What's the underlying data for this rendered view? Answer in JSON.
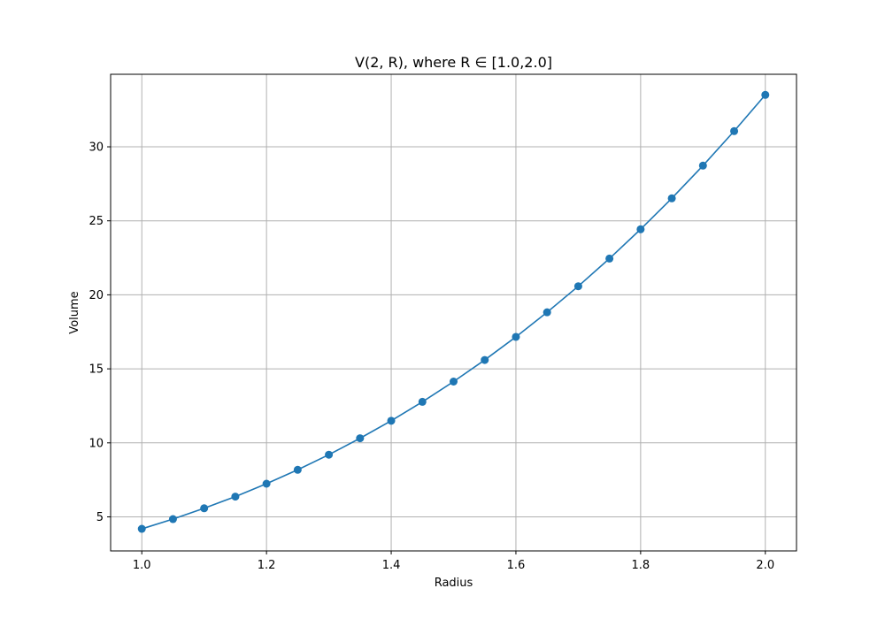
{
  "chart_data": {
    "type": "line",
    "title": "V(2, R), where R ∈ [1.0,2.0]",
    "xlabel": "Radius",
    "ylabel": "Volume",
    "xlim": [
      0.95,
      2.05
    ],
    "ylim": [
      2.7,
      34.9
    ],
    "x_ticks": [
      1.0,
      1.2,
      1.4,
      1.6,
      1.8,
      2.0
    ],
    "x_tick_labels": [
      "1.0",
      "1.2",
      "1.4",
      "1.6",
      "1.8",
      "2.0"
    ],
    "y_ticks": [
      5,
      10,
      15,
      20,
      25,
      30
    ],
    "y_tick_labels": [
      "5",
      "10",
      "15",
      "20",
      "25",
      "30"
    ],
    "grid": true,
    "line_color": "#1f77b4",
    "marker": "circle",
    "series": [
      {
        "x": [
          1.0,
          1.05,
          1.1,
          1.15,
          1.2,
          1.25,
          1.3,
          1.35,
          1.4,
          1.45,
          1.5,
          1.55,
          1.6,
          1.65,
          1.7,
          1.75,
          1.8,
          1.85,
          1.9,
          1.95,
          2.0
        ],
        "y": [
          4.19,
          4.85,
          5.58,
          6.37,
          7.24,
          8.18,
          9.2,
          10.31,
          11.49,
          12.77,
          14.14,
          15.6,
          17.16,
          18.82,
          20.58,
          22.45,
          24.43,
          26.52,
          28.73,
          31.06,
          33.51
        ]
      }
    ]
  }
}
